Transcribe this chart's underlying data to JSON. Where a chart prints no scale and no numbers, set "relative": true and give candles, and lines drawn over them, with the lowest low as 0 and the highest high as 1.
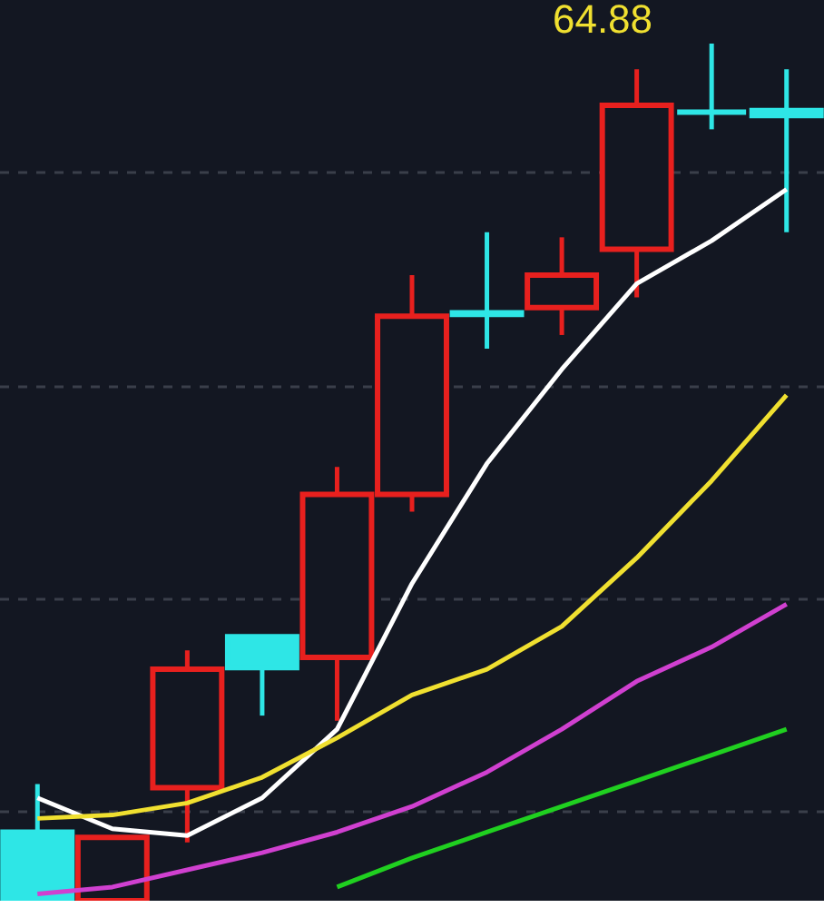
{
  "chart_data": {
    "type": "candlestick",
    "relative": true,
    "categories": [
      null,
      null,
      null,
      null,
      null,
      null,
      null,
      null,
      null,
      null,
      null
    ],
    "ohlc": [
      [
        0.08,
        0.136,
        0,
        0
      ],
      [
        0,
        0.074,
        0,
        0.074
      ],
      [
        0.132,
        0.292,
        0.068,
        0.27
      ],
      [
        0.308,
        0.308,
        0.216,
        0.272
      ],
      [
        0.284,
        0.506,
        0.21,
        0.474
      ],
      [
        0.474,
        0.73,
        0.454,
        0.682
      ],
      [
        0.686,
        0.78,
        0.644,
        0.684
      ],
      [
        0.692,
        0.774,
        0.66,
        0.73
      ],
      [
        0.76,
        0.97,
        0.704,
        0.928
      ],
      [
        0.92,
        1,
        0.9,
        0.92
      ],
      [
        0.922,
        0.97,
        0.78,
        0.916
      ]
    ],
    "colors": [
      "#2ee6e6",
      "#e8201e",
      "#e8201e",
      "#2ee6e6",
      "#e8201e",
      "#e8201e",
      "#2ee6e6",
      "#e8201e",
      "#e8201e",
      "#2ee6e6",
      "#2ee6e6"
    ],
    "series": [
      {
        "type": "line",
        "color": "#ffffff",
        "values": [
          0.12,
          0.084,
          0.076,
          0.12,
          0.2,
          0.37,
          0.51,
          0.62,
          0.72,
          0.77,
          0.83
        ]
      },
      {
        "type": "line",
        "color": "#f0e030",
        "values": [
          0.096,
          0.1,
          0.114,
          0.144,
          0.19,
          0.24,
          0.27,
          0.32,
          0.4,
          0.49,
          0.59
        ]
      },
      {
        "type": "line",
        "color": "#d040d0",
        "values": [
          0.008,
          0.016,
          0.036,
          0.056,
          0.08,
          0.11,
          0.15,
          0.2,
          0.256,
          0.296,
          0.346
        ]
      },
      {
        "type": "line",
        "color": "#20d020",
        "values": [
          null,
          null,
          null,
          null,
          0.016,
          0.05,
          0.08,
          0.11,
          0.14,
          0.17,
          0.2
        ]
      }
    ],
    "grid": "y",
    "annotations": [
      "64.88"
    ]
  }
}
